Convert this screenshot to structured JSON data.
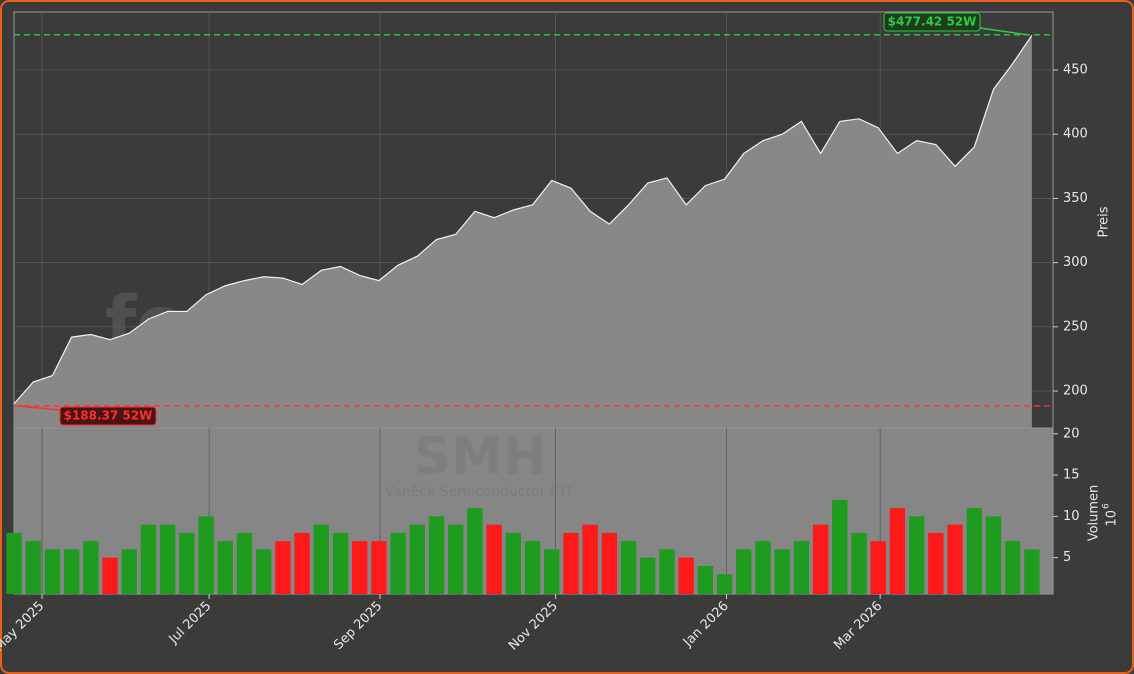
{
  "chart_data": [
    {
      "type": "area",
      "ticker": "SMH",
      "subtitle": "VanEck Semiconductor ETF",
      "watermark": "forexsignale.trade",
      "y_label": "Preis",
      "color": "#888888",
      "line_color": "#f2f2f2",
      "x": [
        0,
        1,
        2,
        3,
        4,
        5,
        6,
        7,
        8,
        9,
        10,
        11,
        12,
        13,
        14,
        15,
        16,
        17,
        18,
        19,
        20,
        21,
        22,
        23,
        24,
        25,
        26,
        27,
        28,
        29,
        30,
        31,
        32,
        33,
        34,
        35,
        36,
        37,
        38,
        39,
        40,
        41,
        42,
        43,
        44,
        45,
        46,
        47,
        48,
        49,
        50,
        51,
        52,
        53
      ],
      "values": [
        190,
        207,
        212,
        242,
        244,
        240,
        245,
        256,
        262,
        262,
        275,
        282,
        286,
        289,
        288,
        283,
        294,
        297,
        290,
        286,
        298,
        305,
        318,
        322,
        340,
        335,
        341,
        345,
        364,
        358,
        340,
        330,
        345,
        362,
        366,
        345,
        360,
        365,
        385,
        395,
        400,
        410,
        385,
        410,
        412,
        405,
        385,
        395,
        392,
        375,
        390,
        435,
        455,
        477
      ],
      "xlim": [
        0,
        54.1
      ],
      "xticks": [
        {
          "value": 1.46,
          "label": "May 2025"
        },
        {
          "value": 10.16,
          "label": "Jul 2025"
        },
        {
          "value": 19.06,
          "label": "Sep 2025"
        },
        {
          "value": 28.2,
          "label": "Nov 2025"
        },
        {
          "value": 37.1,
          "label": "Jan 2026"
        },
        {
          "value": 45.1,
          "label": "Mar 2026"
        }
      ],
      "ylim": [
        171.2,
        495.2
      ],
      "yticks": [
        200,
        250,
        300,
        350,
        400,
        450
      ],
      "grid": true,
      "annotations": [
        {
          "text": "$477.42 52W",
          "value": 477.42,
          "color": "#2ecc40"
        },
        {
          "text": "$188.37 52W",
          "value": 188.37,
          "color": "#ff3030"
        }
      ]
    },
    {
      "type": "bar",
      "y_label": "Volumen",
      "multiplier_base": "10",
      "multiplier_exp": "6",
      "up_color": "#1f9b1f",
      "down_color": "#ff1a1a",
      "values": [
        8,
        7,
        6,
        6,
        7,
        5,
        6,
        9,
        9,
        8,
        10,
        7,
        8,
        6,
        7,
        8,
        9,
        8,
        7,
        7,
        8,
        9,
        10,
        9,
        11,
        9,
        8,
        7,
        6,
        8,
        9,
        8,
        7,
        5,
        6,
        5,
        4,
        3,
        6,
        7,
        6,
        7,
        9,
        12,
        8,
        7,
        11,
        10,
        8,
        9,
        11,
        10,
        7,
        6
      ],
      "ylim": [
        0.6,
        20.7
      ],
      "yticks": [
        5,
        10,
        15,
        20
      ]
    }
  ]
}
